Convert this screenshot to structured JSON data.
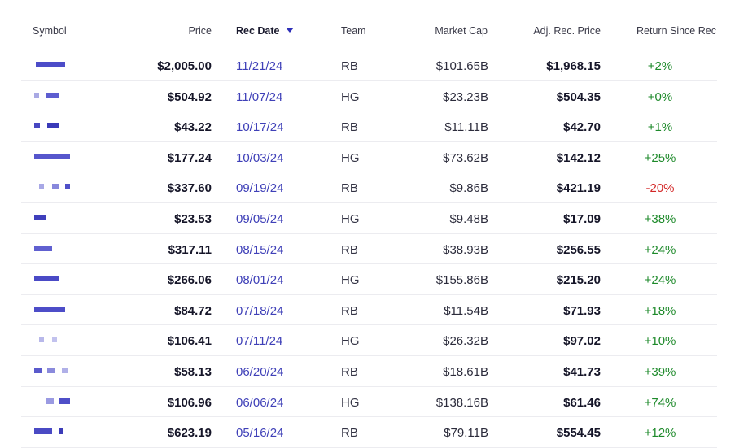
{
  "table": {
    "columns": {
      "symbol": "Symbol",
      "price": "Price",
      "rec_date": "Rec Date",
      "team": "Team",
      "market_cap": "Market Cap",
      "adj_rec_price": "Adj. Rec. Price",
      "return_since_rec": "Return Since Rec"
    },
    "sort": {
      "column": "rec_date",
      "direction": "descending",
      "indicator_icon": "caret-down-icon",
      "indicator_color": "#2e2fb8"
    },
    "symbol_cells": "pixelated / obscured",
    "colors": {
      "date_link": "#3f40b8",
      "positive_return": "#1e8a2b",
      "negative_return": "#d32626"
    },
    "rows": [
      {
        "price": "$2,005.00",
        "rec_date": "11/21/24",
        "team": "RB",
        "market_cap": "$101.65B",
        "adj_rec_price": "$1,968.15",
        "return": "+2%",
        "trend": "pos"
      },
      {
        "price": "$504.92",
        "rec_date": "11/07/24",
        "team": "HG",
        "market_cap": "$23.23B",
        "adj_rec_price": "$504.35",
        "return": "+0%",
        "trend": "pos"
      },
      {
        "price": "$43.22",
        "rec_date": "10/17/24",
        "team": "RB",
        "market_cap": "$11.11B",
        "adj_rec_price": "$42.70",
        "return": "+1%",
        "trend": "pos"
      },
      {
        "price": "$177.24",
        "rec_date": "10/03/24",
        "team": "HG",
        "market_cap": "$73.62B",
        "adj_rec_price": "$142.12",
        "return": "+25%",
        "trend": "pos"
      },
      {
        "price": "$337.60",
        "rec_date": "09/19/24",
        "team": "RB",
        "market_cap": "$9.86B",
        "adj_rec_price": "$421.19",
        "return": "-20%",
        "trend": "neg"
      },
      {
        "price": "$23.53",
        "rec_date": "09/05/24",
        "team": "HG",
        "market_cap": "$9.48B",
        "adj_rec_price": "$17.09",
        "return": "+38%",
        "trend": "pos"
      },
      {
        "price": "$317.11",
        "rec_date": "08/15/24",
        "team": "RB",
        "market_cap": "$38.93B",
        "adj_rec_price": "$256.55",
        "return": "+24%",
        "trend": "pos"
      },
      {
        "price": "$266.06",
        "rec_date": "08/01/24",
        "team": "HG",
        "market_cap": "$155.86B",
        "adj_rec_price": "$215.20",
        "return": "+24%",
        "trend": "pos"
      },
      {
        "price": "$84.72",
        "rec_date": "07/18/24",
        "team": "RB",
        "market_cap": "$11.54B",
        "adj_rec_price": "$71.93",
        "return": "+18%",
        "trend": "pos"
      },
      {
        "price": "$106.41",
        "rec_date": "07/11/24",
        "team": "HG",
        "market_cap": "$26.32B",
        "adj_rec_price": "$97.02",
        "return": "+10%",
        "trend": "pos"
      },
      {
        "price": "$58.13",
        "rec_date": "06/20/24",
        "team": "RB",
        "market_cap": "$18.61B",
        "adj_rec_price": "$41.73",
        "return": "+39%",
        "trend": "pos"
      },
      {
        "price": "$106.96",
        "rec_date": "06/06/24",
        "team": "HG",
        "market_cap": "$138.16B",
        "adj_rec_price": "$61.46",
        "return": "+74%",
        "trend": "pos"
      },
      {
        "price": "$623.19",
        "rec_date": "05/16/24",
        "team": "RB",
        "market_cap": "$79.11B",
        "adj_rec_price": "$554.45",
        "return": "+12%",
        "trend": "pos"
      }
    ]
  }
}
